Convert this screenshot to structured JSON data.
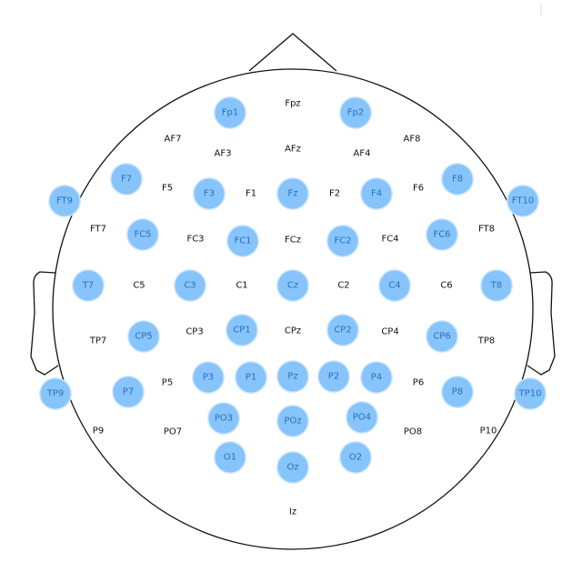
{
  "colors": {
    "active_fill": "#86c4fb",
    "active_halo": "#cfe6fd",
    "active_text": "#2b6fb8",
    "inactive_text": "#111111",
    "outline": "#111111"
  },
  "electrodes": [
    {
      "name": "Fp1",
      "active": true
    },
    {
      "name": "Fpz",
      "active": false
    },
    {
      "name": "Fp2",
      "active": true
    },
    {
      "name": "AF7",
      "active": false
    },
    {
      "name": "AF3",
      "active": false
    },
    {
      "name": "AFz",
      "active": false
    },
    {
      "name": "AF4",
      "active": false
    },
    {
      "name": "AF8",
      "active": false
    },
    {
      "name": "F7",
      "active": true
    },
    {
      "name": "F5",
      "active": false
    },
    {
      "name": "F3",
      "active": true
    },
    {
      "name": "F1",
      "active": false
    },
    {
      "name": "Fz",
      "active": true
    },
    {
      "name": "F2",
      "active": false
    },
    {
      "name": "F4",
      "active": true
    },
    {
      "name": "F6",
      "active": false
    },
    {
      "name": "F8",
      "active": true
    },
    {
      "name": "FT9",
      "active": true
    },
    {
      "name": "FT10",
      "active": true
    },
    {
      "name": "FT7",
      "active": false
    },
    {
      "name": "FC5",
      "active": true
    },
    {
      "name": "FC3",
      "active": false
    },
    {
      "name": "FC1",
      "active": true
    },
    {
      "name": "FCz",
      "active": false
    },
    {
      "name": "FC2",
      "active": true
    },
    {
      "name": "FC4",
      "active": false
    },
    {
      "name": "FC6",
      "active": true
    },
    {
      "name": "FT8",
      "active": false
    },
    {
      "name": "T7",
      "active": true
    },
    {
      "name": "C5",
      "active": false
    },
    {
      "name": "C3",
      "active": true
    },
    {
      "name": "C1",
      "active": false
    },
    {
      "name": "Cz",
      "active": true
    },
    {
      "name": "C2",
      "active": false
    },
    {
      "name": "C4",
      "active": true
    },
    {
      "name": "C6",
      "active": false
    },
    {
      "name": "T8",
      "active": true
    },
    {
      "name": "TP7",
      "active": false
    },
    {
      "name": "CP5",
      "active": true
    },
    {
      "name": "CP3",
      "active": false
    },
    {
      "name": "CP1",
      "active": true
    },
    {
      "name": "CPz",
      "active": false
    },
    {
      "name": "CP2",
      "active": true
    },
    {
      "name": "CP4",
      "active": false
    },
    {
      "name": "CP6",
      "active": true
    },
    {
      "name": "TP8",
      "active": false
    },
    {
      "name": "TP9",
      "active": true
    },
    {
      "name": "TP10",
      "active": true
    },
    {
      "name": "P7",
      "active": true
    },
    {
      "name": "P5",
      "active": false
    },
    {
      "name": "P3",
      "active": true
    },
    {
      "name": "P1",
      "active": true
    },
    {
      "name": "Pz",
      "active": true
    },
    {
      "name": "P2",
      "active": true
    },
    {
      "name": "P4",
      "active": true
    },
    {
      "name": "P6",
      "active": false
    },
    {
      "name": "P8",
      "active": true
    },
    {
      "name": "P9",
      "active": false
    },
    {
      "name": "PO7",
      "active": false
    },
    {
      "name": "PO3",
      "active": true
    },
    {
      "name": "POz",
      "active": true
    },
    {
      "name": "PO4",
      "active": true
    },
    {
      "name": "PO8",
      "active": false
    },
    {
      "name": "P10",
      "active": false
    },
    {
      "name": "O1",
      "active": true
    },
    {
      "name": "Oz",
      "active": true
    },
    {
      "name": "O2",
      "active": true
    },
    {
      "name": "Iz",
      "active": false
    }
  ]
}
